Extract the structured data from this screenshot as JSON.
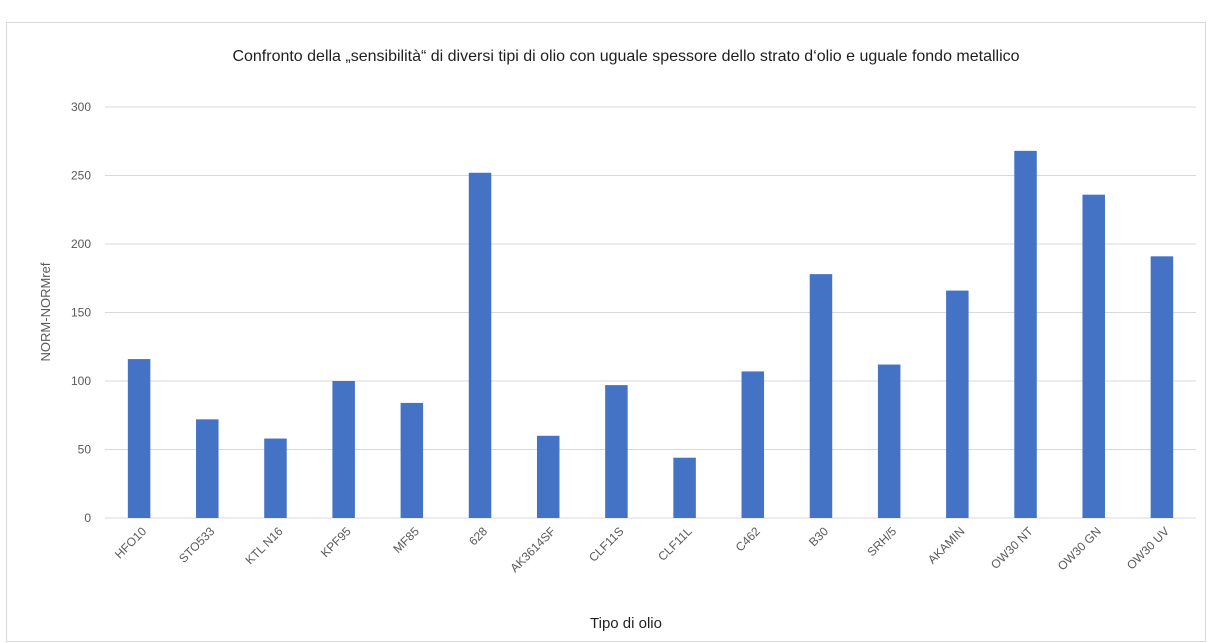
{
  "chart_data": {
    "type": "bar",
    "title": "Confronto della „sensibilità“ di diversi tipi di olio con uguale spessore dello strato d‘olio e uguale fondo metallico",
    "xlabel": "Tipo di olio",
    "ylabel": "NORM-NORMref",
    "ylim": [
      0,
      300
    ],
    "yticks": [
      0,
      50,
      100,
      150,
      200,
      250,
      300
    ],
    "grid": true,
    "legend": "none",
    "bar_color": "#4472c4",
    "categories": [
      "HFO10",
      "STO533",
      "KTL N16",
      "KPF95",
      "MF85",
      "628",
      "AK3614SF",
      "CLF11S",
      "CLF11L",
      "C462",
      "B30",
      "SRH/5",
      "AKAMIN",
      "OW30 NT",
      "OW30 GN",
      "OW30 UV"
    ],
    "values": [
      116,
      72,
      58,
      100,
      84,
      252,
      60,
      97,
      44,
      107,
      178,
      112,
      166,
      268,
      236,
      191
    ]
  }
}
